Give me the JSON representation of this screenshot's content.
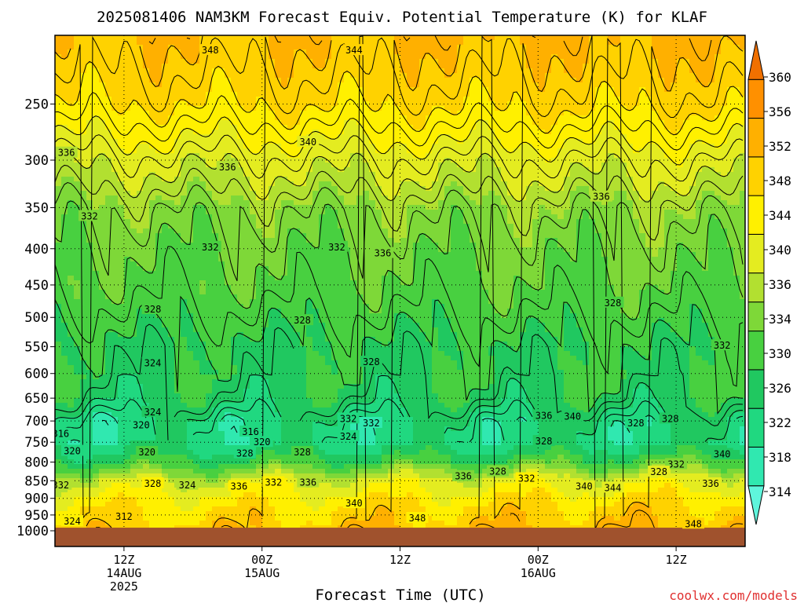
{
  "chart_data": {
    "type": "heatmap",
    "title": "2025081406 NAM3KM Forecast Equiv. Potential Temperature (K) for KLAF",
    "xlabel": "Forecast Time (UTC)",
    "ylabel": "",
    "credit": "coolwx.com/models",
    "x_unit": "hours after 2025-08-14 06Z",
    "x_range_hours": [
      0,
      60
    ],
    "x_ticks": [
      {
        "hour": 6,
        "lines": [
          "12Z",
          "14AUG",
          "2025"
        ]
      },
      {
        "hour": 18,
        "lines": [
          "00Z",
          "15AUG"
        ]
      },
      {
        "hour": 30,
        "lines": [
          "12Z"
        ]
      },
      {
        "hour": 42,
        "lines": [
          "00Z",
          "16AUG"
        ]
      },
      {
        "hour": 54,
        "lines": [
          "12Z"
        ]
      }
    ],
    "y_unit": "hPa",
    "y_range": [
      200,
      1000
    ],
    "y_log_scale": true,
    "y_ticks": [
      250,
      300,
      350,
      400,
      450,
      500,
      550,
      600,
      650,
      700,
      750,
      800,
      850,
      900,
      950,
      1000
    ],
    "ground_level_hPa": 990,
    "colorbar": {
      "tick_labels": [
        314,
        318,
        322,
        326,
        330,
        334,
        336,
        340,
        344,
        348,
        352,
        356,
        360
      ],
      "color_bands": [
        {
          "from": 312,
          "to": 316,
          "color": "#5ff5dc"
        },
        {
          "from": 316,
          "to": 320,
          "color": "#30e8b0"
        },
        {
          "from": 320,
          "to": 324,
          "color": "#20d880"
        },
        {
          "from": 324,
          "to": 328,
          "color": "#20c860"
        },
        {
          "from": 328,
          "to": 332,
          "color": "#48d040"
        },
        {
          "from": 332,
          "to": 335,
          "color": "#7ed838"
        },
        {
          "from": 335,
          "to": 338,
          "color": "#b2e030"
        },
        {
          "from": 338,
          "to": 342,
          "color": "#e4ec20"
        },
        {
          "from": 342,
          "to": 346,
          "color": "#fff000"
        },
        {
          "from": 346,
          "to": 350,
          "color": "#ffd200"
        },
        {
          "from": 350,
          "to": 354,
          "color": "#ffb000"
        },
        {
          "from": 354,
          "to": 358,
          "color": "#ff9000"
        },
        {
          "from": 358,
          "to": 362,
          "color": "#f07000"
        }
      ]
    },
    "profile": [
      {
        "p": 200,
        "theta_e": 350
      },
      {
        "p": 250,
        "theta_e": 346
      },
      {
        "p": 300,
        "theta_e": 339
      },
      {
        "p": 350,
        "theta_e": 334
      },
      {
        "p": 400,
        "theta_e": 332
      },
      {
        "p": 450,
        "theta_e": 331
      },
      {
        "p": 500,
        "theta_e": 329
      },
      {
        "p": 550,
        "theta_e": 327
      },
      {
        "p": 600,
        "theta_e": 327
      },
      {
        "p": 650,
        "theta_e": 326
      },
      {
        "p": 700,
        "theta_e": 322
      },
      {
        "p": 750,
        "theta_e": 322
      },
      {
        "p": 800,
        "theta_e": 328
      },
      {
        "p": 850,
        "theta_e": 338
      },
      {
        "p": 900,
        "theta_e": 343
      },
      {
        "p": 950,
        "theta_e": 346
      },
      {
        "p": 1000,
        "theta_e": 348
      }
    ],
    "contour_labels": [
      {
        "hour": 13.5,
        "p": 210,
        "text": "348"
      },
      {
        "hour": 26.0,
        "p": 210,
        "text": "344"
      },
      {
        "hour": 22.0,
        "p": 283,
        "text": "340"
      },
      {
        "hour": 1.0,
        "p": 293,
        "text": "336"
      },
      {
        "hour": 15.0,
        "p": 307,
        "text": "336"
      },
      {
        "hour": 47.5,
        "p": 338,
        "text": "336"
      },
      {
        "hour": 3.0,
        "p": 360,
        "text": "332"
      },
      {
        "hour": 13.5,
        "p": 398,
        "text": "332"
      },
      {
        "hour": 24.5,
        "p": 398,
        "text": "332"
      },
      {
        "hour": 28.5,
        "p": 406,
        "text": "336"
      },
      {
        "hour": 8.5,
        "p": 487,
        "text": "328"
      },
      {
        "hour": 21.5,
        "p": 505,
        "text": "328"
      },
      {
        "hour": 48.5,
        "p": 477,
        "text": "328"
      },
      {
        "hour": 58.0,
        "p": 548,
        "text": "332"
      },
      {
        "hour": 8.5,
        "p": 580,
        "text": "324"
      },
      {
        "hour": 27.5,
        "p": 578,
        "text": "328"
      },
      {
        "hour": 8.5,
        "p": 680,
        "text": "324"
      },
      {
        "hour": 7.5,
        "p": 710,
        "text": "320"
      },
      {
        "hour": 0.5,
        "p": 730,
        "text": "316"
      },
      {
        "hour": 17.0,
        "p": 725,
        "text": "316"
      },
      {
        "hour": 18.0,
        "p": 750,
        "text": "320"
      },
      {
        "hour": 25.5,
        "p": 695,
        "text": "332"
      },
      {
        "hour": 42.5,
        "p": 688,
        "text": "336"
      },
      {
        "hour": 45.0,
        "p": 690,
        "text": "340"
      },
      {
        "hour": 50.5,
        "p": 705,
        "text": "328"
      },
      {
        "hour": 53.5,
        "p": 695,
        "text": "328"
      },
      {
        "hour": 27.5,
        "p": 705,
        "text": "332"
      },
      {
        "hour": 25.5,
        "p": 736,
        "text": "324"
      },
      {
        "hour": 42.5,
        "p": 748,
        "text": "328"
      },
      {
        "hour": 1.5,
        "p": 772,
        "text": "320"
      },
      {
        "hour": 8.0,
        "p": 775,
        "text": "320"
      },
      {
        "hour": 16.5,
        "p": 778,
        "text": "328"
      },
      {
        "hour": 21.5,
        "p": 775,
        "text": "328"
      },
      {
        "hour": 54.0,
        "p": 806,
        "text": "332"
      },
      {
        "hour": 58.0,
        "p": 780,
        "text": "340"
      },
      {
        "hour": 52.5,
        "p": 826,
        "text": "328"
      },
      {
        "hour": 38.5,
        "p": 825,
        "text": "328"
      },
      {
        "hour": 35.5,
        "p": 838,
        "text": "336"
      },
      {
        "hour": 41.0,
        "p": 844,
        "text": "332"
      },
      {
        "hour": 0.5,
        "p": 862,
        "text": "332"
      },
      {
        "hour": 8.5,
        "p": 858,
        "text": "328"
      },
      {
        "hour": 11.5,
        "p": 862,
        "text": "324"
      },
      {
        "hour": 16.0,
        "p": 866,
        "text": "336"
      },
      {
        "hour": 19.0,
        "p": 855,
        "text": "332"
      },
      {
        "hour": 22.0,
        "p": 855,
        "text": "336"
      },
      {
        "hour": 46.0,
        "p": 866,
        "text": "340"
      },
      {
        "hour": 48.5,
        "p": 870,
        "text": "344"
      },
      {
        "hour": 57.0,
        "p": 858,
        "text": "336"
      },
      {
        "hour": 26.0,
        "p": 915,
        "text": "340"
      },
      {
        "hour": 31.5,
        "p": 960,
        "text": "348"
      },
      {
        "hour": 55.5,
        "p": 978,
        "text": "348"
      },
      {
        "hour": 6.0,
        "p": 955,
        "text": "312"
      },
      {
        "hour": 1.5,
        "p": 970,
        "text": "324"
      }
    ]
  }
}
